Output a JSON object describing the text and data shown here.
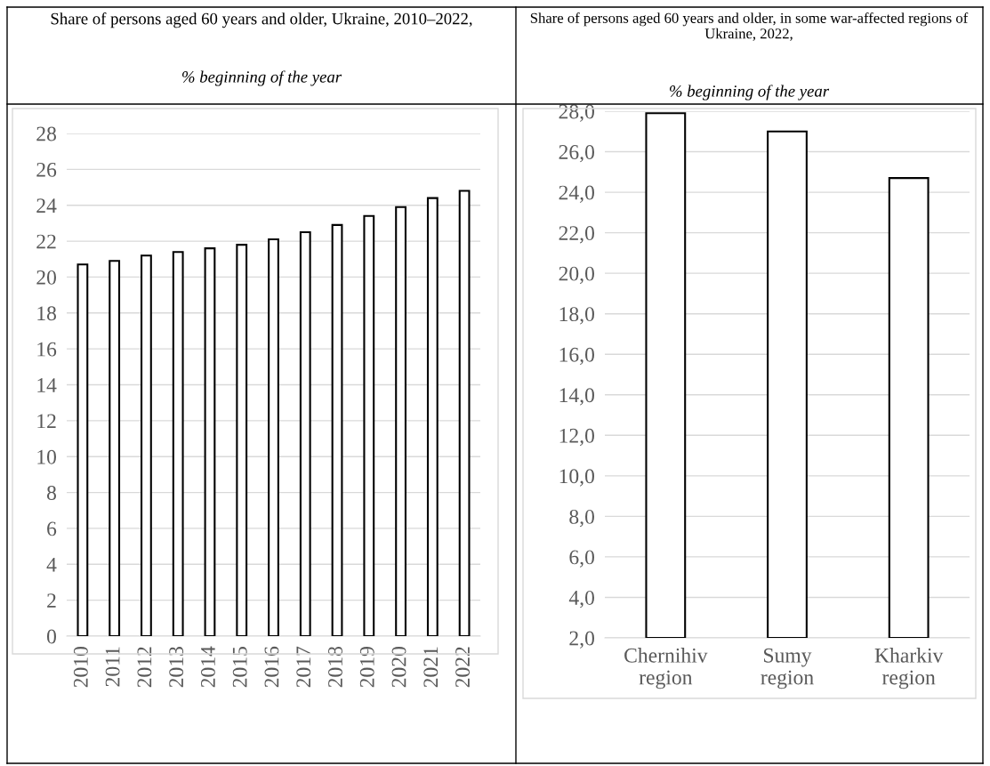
{
  "chart_data": [
    {
      "type": "bar",
      "title": "Share of persons aged 60 years and older, Ukraine, 2010–2022,",
      "subtitle": "% beginning of the year",
      "categories": [
        "2010",
        "2011",
        "2012",
        "2013",
        "2014",
        "2015",
        "2016",
        "2017",
        "2018",
        "2019",
        "2020",
        "2021",
        "2022"
      ],
      "series": [
        {
          "color": "#ffffff",
          "values": [
            20.7,
            20.9,
            21.2,
            21.4,
            21.6,
            21.8,
            22.1,
            22.5,
            22.9,
            23.4,
            23.9,
            24.4,
            24.8
          ]
        }
      ],
      "ylim": [
        0,
        28
      ],
      "yticks": [
        0,
        2,
        4,
        6,
        8,
        10,
        12,
        14,
        16,
        18,
        20,
        22,
        24,
        26,
        28
      ],
      "grid": "y",
      "legend": false
    },
    {
      "type": "bar",
      "title": "Share of persons aged 60 years and older, in some war-affected regions of Ukraine, 2022,",
      "subtitle": "% beginning of the year",
      "categories": [
        "Chernihiv region",
        "Sumy region",
        "Kharkiv region"
      ],
      "series": [
        {
          "color": "#ffffff",
          "values": [
            27.9,
            27.0,
            24.7
          ]
        }
      ],
      "ylim": [
        2,
        28
      ],
      "yticks": [
        {
          "value": 2,
          "label": "2,0"
        },
        {
          "value": 4,
          "label": "4,0"
        },
        {
          "value": 6,
          "label": "6,0"
        },
        {
          "value": 8,
          "label": "8,0"
        },
        {
          "value": 10,
          "label": "10,0"
        },
        {
          "value": 12,
          "label": "12,0"
        },
        {
          "value": 14,
          "label": "14,0"
        },
        {
          "value": 16,
          "label": "16,0"
        },
        {
          "value": 18,
          "label": "18,0"
        },
        {
          "value": 20,
          "label": "20,0"
        },
        {
          "value": 22,
          "label": "22,0"
        },
        {
          "value": 24,
          "label": "24,0"
        },
        {
          "value": 26,
          "label": "26,0"
        },
        {
          "value": 28,
          "label": "28,0"
        }
      ],
      "grid": "y",
      "legend": false
    }
  ]
}
